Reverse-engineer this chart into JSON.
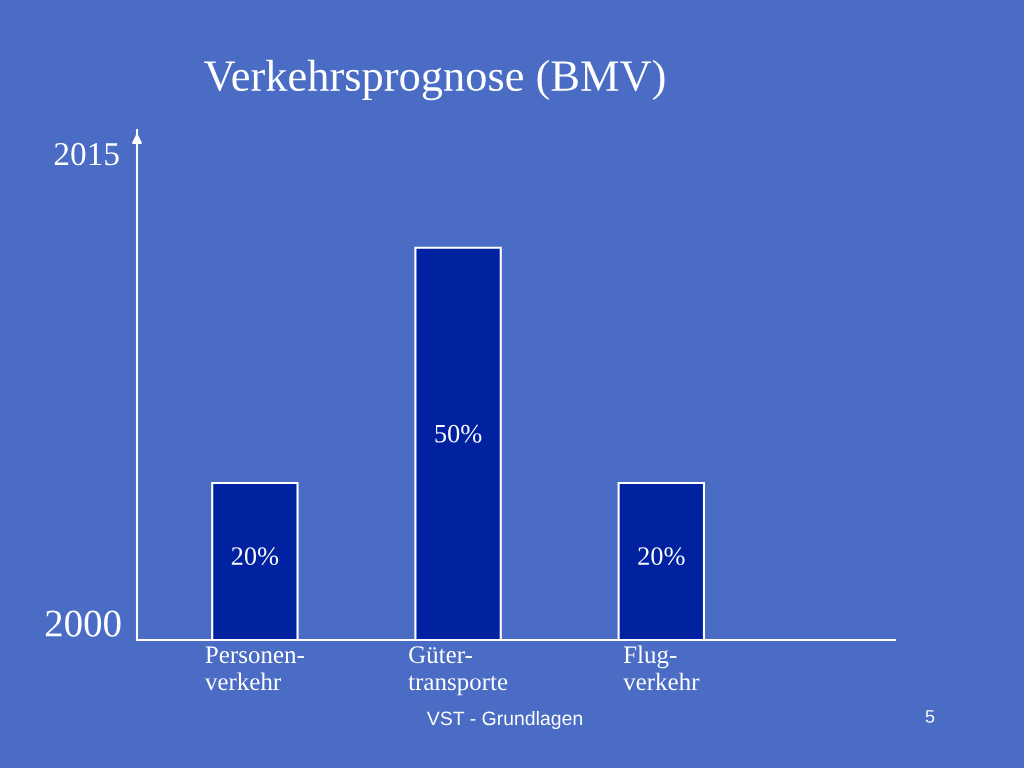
{
  "chart_data": {
    "type": "bar",
    "title": "Verkehrsprognose (BMV)",
    "categories": [
      "Personen-\nverkehr",
      "Güter-\ntransporte",
      "Flug-\nverkehr"
    ],
    "values": [
      20,
      50,
      20
    ],
    "value_labels": [
      "20%",
      "50%",
      "20%"
    ],
    "color": "#0022a0",
    "ylim": [
      0,
      65
    ],
    "annotations": [
      "2015",
      "2000",
      "VST - Grundlagen",
      "5"
    ],
    "grid": false,
    "legend": false
  }
}
